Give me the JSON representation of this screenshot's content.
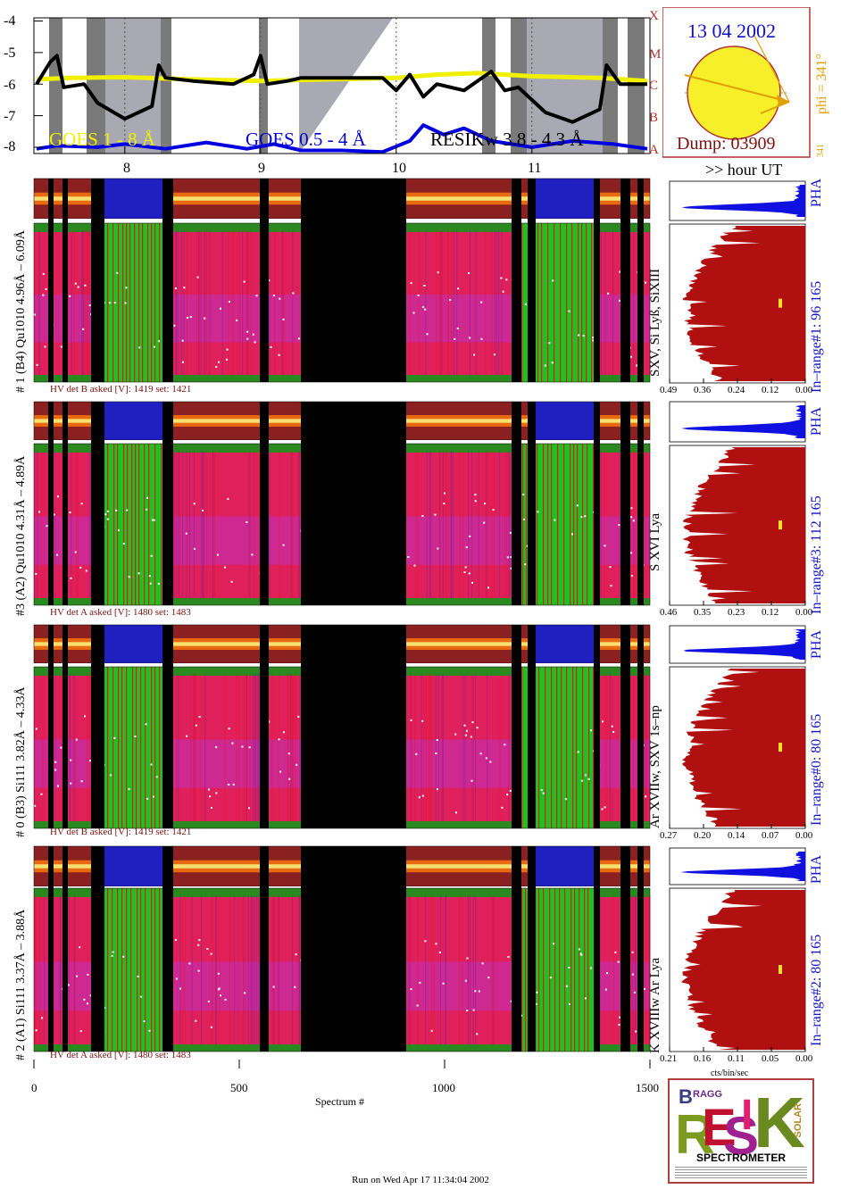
{
  "chart_data": [
    {
      "type": "line",
      "name": "GOES light curve",
      "xlim": [
        7.33,
        11.87
      ],
      "ylim": [
        -8.2,
        -3.9
      ],
      "y_ticks": [
        "-4",
        "-5",
        "-6",
        "-7",
        "-8"
      ],
      "x_ticks": [
        {
          "value": 8,
          "label": "8"
        },
        {
          "value": 9,
          "label": "9"
        },
        {
          "value": 10,
          "label": "10"
        },
        {
          "value": 11,
          "label": "11"
        }
      ],
      "class_labels": [
        "X",
        "M",
        "C",
        "B",
        "A"
      ],
      "xlabel_right": ">> hour UT",
      "series": [
        {
          "name": "GOES 1 - 8 Å",
          "color": "#f0f000",
          "x": [
            7.35,
            7.6,
            8.0,
            8.5,
            9.0,
            9.5,
            10.0,
            10.3,
            10.6,
            11.0,
            11.5,
            11.85
          ],
          "y": [
            -5.85,
            -5.8,
            -5.78,
            -5.85,
            -5.9,
            -5.85,
            -5.8,
            -5.7,
            -5.65,
            -5.75,
            -5.8,
            -5.9
          ]
        },
        {
          "name": "GOES 0.5 - 4 Å",
          "color": "#0000e0",
          "x": [
            7.35,
            7.5,
            7.8,
            8.0,
            8.3,
            8.6,
            8.9,
            9.1,
            9.3,
            9.6,
            9.9,
            10.1,
            10.2,
            10.35,
            10.5,
            10.7,
            11.0,
            11.3,
            11.6,
            11.85
          ],
          "y": [
            -8.05,
            -7.95,
            -8.0,
            -7.9,
            -8.05,
            -7.85,
            -8.05,
            -7.9,
            -8.1,
            -8.1,
            -8.15,
            -7.8,
            -7.3,
            -7.6,
            -7.4,
            -7.8,
            -8.0,
            -7.8,
            -7.9,
            -8.05
          ]
        },
        {
          "name": "RESIK w 3.8 - 4.3 Å",
          "color": "#000000",
          "x": [
            7.35,
            7.45,
            7.5,
            7.55,
            7.7,
            7.8,
            8.0,
            8.2,
            8.25,
            8.3,
            8.5,
            8.8,
            8.95,
            9.0,
            9.05,
            9.2,
            9.3,
            9.6,
            9.9,
            10.0,
            10.1,
            10.2,
            10.3,
            10.5,
            10.7,
            10.8,
            10.9,
            11.0,
            11.1,
            11.3,
            11.5,
            11.55,
            11.65,
            11.85
          ],
          "y": [
            -6.0,
            -5.3,
            -5.1,
            -6.1,
            -6.0,
            -6.6,
            -7.1,
            -6.7,
            -5.4,
            -5.8,
            -5.9,
            -6.0,
            -5.7,
            -5.1,
            -6.0,
            -5.9,
            -5.8,
            -5.8,
            -5.8,
            -6.2,
            -5.7,
            -6.4,
            -6.0,
            -6.2,
            -5.6,
            -6.2,
            -6.1,
            -6.5,
            -6.9,
            -7.2,
            -6.8,
            -5.4,
            -6.0,
            -6.0
          ]
        }
      ],
      "legend": [
        "GOES 1 - 8 Å",
        "GOES 0.5 - 4 Å",
        "RESIKw 3.8 - 4.3 Å"
      ],
      "colors": {
        "goes_long": "#f0f000",
        "goes_short": "#0000e0",
        "resik": "#000000",
        "night": "#a9a9b3",
        "saa": "#7a7a7a"
      }
    },
    {
      "type": "heatmap",
      "name": "RESIK spectra",
      "x_ticks": [
        {
          "value": 0,
          "label": "0"
        },
        {
          "value": 500,
          "label": "500"
        },
        {
          "value": 1000,
          "label": "1000"
        },
        {
          "value": 1500,
          "label": "1500"
        }
      ],
      "xlabel": "Spectrum #",
      "xlim": [
        0,
        1500
      ],
      "panels": [
        {
          "label": "# 1 (B4) Qu1010 4.96Å – 6.09Å",
          "lines": "SXV, Si Lyß, SiXIII",
          "hv": "HV det B asked [V]:  1419 set:  1421",
          "range": "In–range#1:   96 165"
        },
        {
          "label": "#3 (A2) Qu1010   4.31Å  – 4.89Å",
          "lines": "S XVI Lya",
          "hv": "HV det A asked [V]:  1480 set:  1483",
          "range": "In–range#3:  112 165"
        },
        {
          "label": "# 0 (B3) Si111  3.82Å – 4.33Å",
          "lines": "Ar XVIIw, SXV 1s–np",
          "hv": "HV det B asked [V]:  1419 set:  1421",
          "range": "In–range#0:   80 165"
        },
        {
          "label": "# 2 (A1) Si111  3.37Å – 3.88Å",
          "lines": "K XVIIIw  Ar Lya",
          "hv": "HV det A asked [V]:  1480 set:  1483",
          "range": "In–range#2:   80 165"
        }
      ]
    },
    {
      "type": "area",
      "name": "Count profiles",
      "pha_label": "PHA",
      "xlabel_bottom": "cts/bin/sec",
      "tick_sets": [
        [
          "0.49",
          "0.36",
          "0.24",
          "0.12",
          "0.00"
        ],
        [
          "0.46",
          "0.35",
          "0.23",
          "0.12",
          "0.00"
        ],
        [
          "0.27",
          "0.20",
          "0.14",
          "0.07",
          "0.00"
        ],
        [
          "0.21",
          "0.16",
          "0.11",
          "0.05",
          "0.00"
        ]
      ]
    }
  ],
  "sun_panel": {
    "date": "13 04 2002",
    "dump": "Dump: 03909",
    "phi": "phi = 341°",
    "phi_small": "341",
    "phi_small2": "341"
  },
  "logo": {
    "caption": "SPECTROMETER",
    "letters": "RESIK",
    "bragg": "BRAGG",
    "solar": "SOLAR"
  },
  "footer": "Run on Wed Apr 17 11:34:04 2002"
}
